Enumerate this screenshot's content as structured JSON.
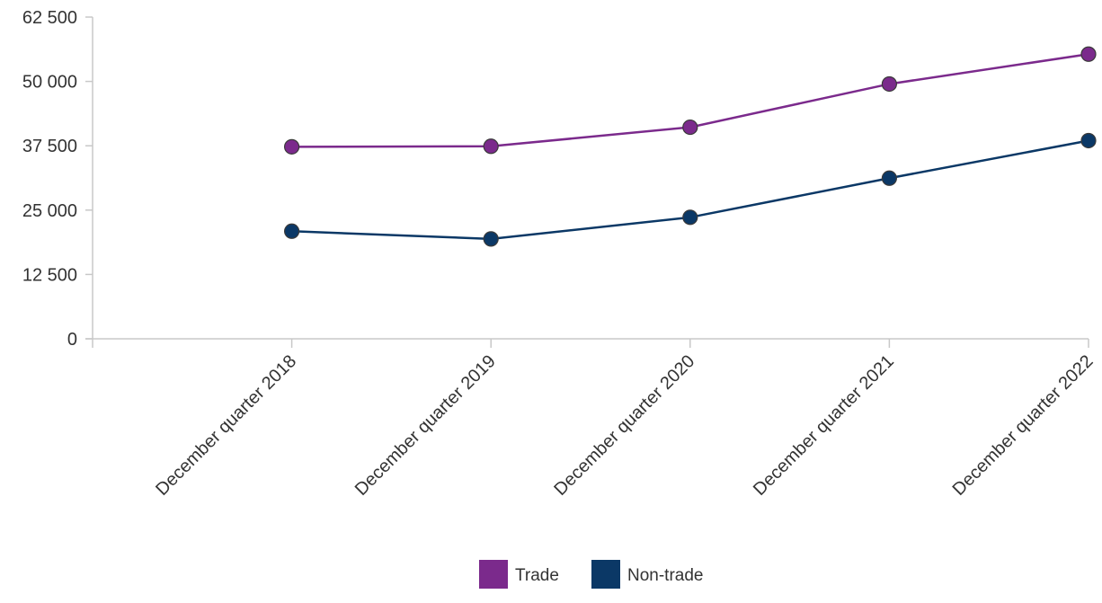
{
  "chart_data": {
    "type": "line",
    "categories": [
      "",
      "December quarter 2018",
      "December quarter 2019",
      "December quarter 2020",
      "December quarter 2021",
      "December quarter 2022"
    ],
    "ylim": [
      0,
      62500
    ],
    "yticks": [
      0,
      12500,
      25000,
      37500,
      50000,
      62500
    ],
    "ytick_labels": [
      "0",
      "12 500",
      "25 000",
      "37 500",
      "50 000",
      "62 500"
    ],
    "grid": false,
    "legend_position": "bottom-center",
    "series": [
      {
        "name": "Trade",
        "color": "#7b2a8c",
        "values": [
          null,
          37300,
          37400,
          41100,
          49500,
          55300
        ]
      },
      {
        "name": "Non-trade",
        "color": "#0b3866",
        "values": [
          null,
          20900,
          19400,
          23600,
          31200,
          38500
        ]
      }
    ]
  }
}
